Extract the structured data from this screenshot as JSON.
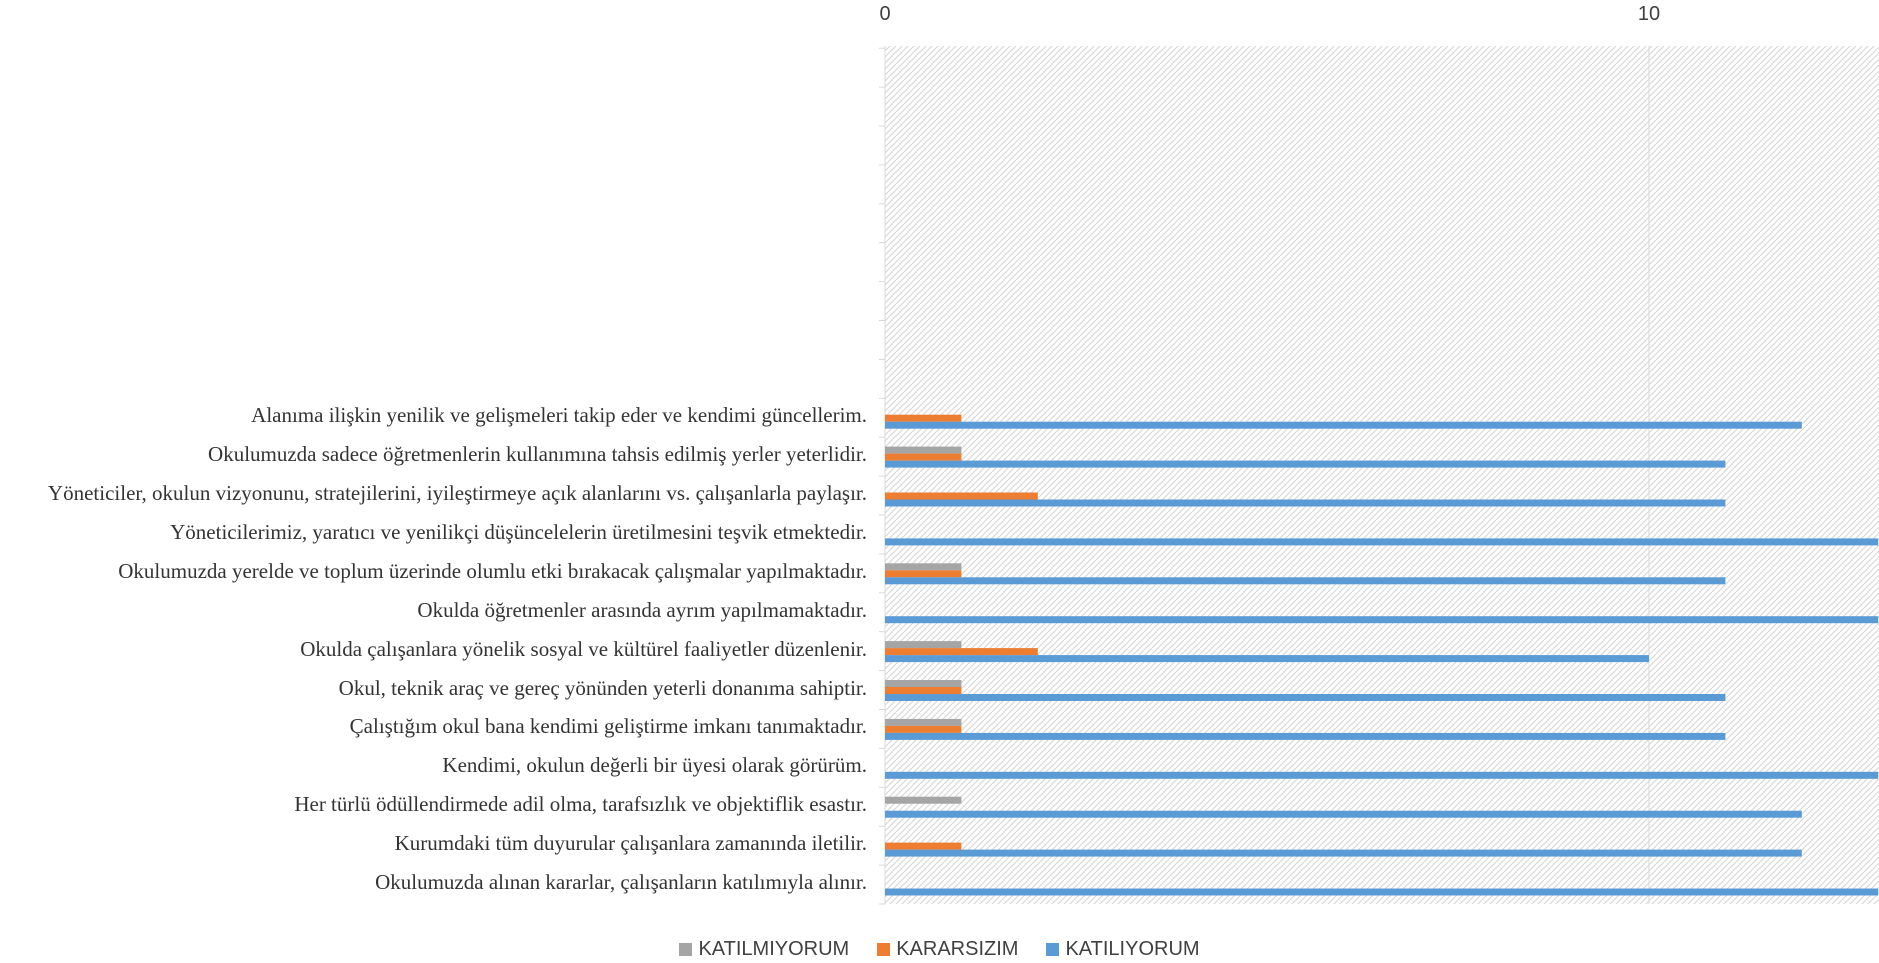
{
  "chart_data": {
    "type": "bar",
    "orientation": "horizontal",
    "categories": [
      "Alanıma ilişkin yenilik ve gelişmeleri takip eder ve kendimi güncellerim.",
      "Okulumuzda sadece öğretmenlerin kullanımına tahsis edilmiş yerler yeterlidir.",
      "Yöneticiler, okulun vizyonunu, stratejilerini, iyileştirmeye açık alanlarını vs. çalışanlarla paylaşır.",
      "Yöneticilerimiz, yaratıcı ve yenilikçi düşüncelelerin üretilmesini teşvik etmektedir.",
      "Okulumuzda yerelde ve toplum üzerinde olumlu etki bırakacak çalışmalar yapılmaktadır.",
      "Okulda öğretmenler arasında ayrım yapılmamaktadır.",
      "Okulda çalışanlara yönelik sosyal ve kültürel faaliyetler düzenlenir.",
      "Okul, teknik araç ve gereç yönünden yeterli donanıma sahiptir.",
      "Çalıştığım okul bana kendimi geliştirme imkanı tanımaktadır.",
      "Kendimi, okulun değerli bir üyesi olarak görürüm.",
      "Her türlü ödüllendirmede adil olma, tarafsızlık ve objektiflik esastır.",
      "Kurumdaki tüm duyurular çalışanlara zamanında iletilir.",
      "Okulumuzda alınan kararlar, çalışanların katılımıyla alınır."
    ],
    "series": [
      {
        "name": "KATILMIYORUM",
        "color": "#a5a5a5",
        "values": [
          0,
          1,
          0,
          0,
          1,
          0,
          1,
          1,
          1,
          0,
          1,
          0,
          0
        ]
      },
      {
        "name": "KARARSIZIM",
        "color": "#ed7d31",
        "values": [
          1,
          1,
          2,
          0,
          1,
          0,
          2,
          1,
          1,
          0,
          0,
          1,
          0
        ]
      },
      {
        "name": "KATILIYORUM",
        "color": "#5b9bd5",
        "values": [
          12,
          11,
          11,
          13,
          11,
          13,
          10,
          11,
          11,
          13,
          12,
          12,
          13
        ]
      }
    ],
    "xlim": [
      0,
      13
    ],
    "xticks": [
      "0",
      "10"
    ],
    "grid": true,
    "legend_position": "bottom"
  }
}
